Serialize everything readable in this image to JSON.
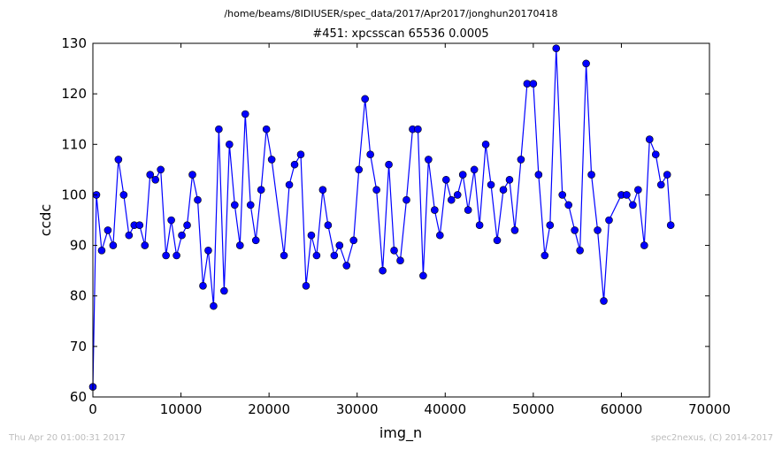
{
  "header": {
    "file_path": "/home/beams/8IDIUSER/spec_data/2017/Apr2017/jonghun20170418"
  },
  "footer": {
    "timestamp": "Thu Apr 20 01:00:31 2017",
    "credit": "spec2nexus, (C) 2014-2017"
  },
  "chart_data": {
    "type": "line",
    "title": "#451: xpcsscan 65536 0.0005",
    "xlabel": "img_n",
    "ylabel": "ccdc",
    "xlim": [
      0,
      70000
    ],
    "ylim": [
      60,
      130
    ],
    "xticks": [
      "0",
      "10000",
      "20000",
      "30000",
      "40000",
      "50000",
      "60000",
      "70000"
    ],
    "yticks": [
      "60",
      "70",
      "80",
      "90",
      "100",
      "110",
      "120",
      "130"
    ],
    "grid": false,
    "color": "#0000ff",
    "marker": "circle",
    "x": [
      0,
      400,
      1000,
      1700,
      2300,
      2900,
      3500,
      4100,
      4700,
      5300,
      5900,
      6500,
      7100,
      7700,
      8300,
      8900,
      9500,
      10100,
      10700,
      11300,
      11900,
      12500,
      13100,
      13700,
      14300,
      14900,
      15500,
      16100,
      16700,
      17300,
      17900,
      18500,
      19100,
      19700,
      20300,
      21700,
      22300,
      22900,
      23600,
      24200,
      24800,
      25400,
      26100,
      26700,
      27400,
      28000,
      28800,
      29600,
      30200,
      30900,
      31500,
      32200,
      32900,
      33600,
      34200,
      34900,
      35600,
      36300,
      36900,
      37500,
      38100,
      38800,
      39400,
      40100,
      40700,
      41400,
      42000,
      42600,
      43300,
      43900,
      44600,
      45200,
      45900,
      46600,
      47300,
      47900,
      48600,
      49300,
      50000,
      50600,
      51300,
      51900,
      52600,
      53300,
      54000,
      54700,
      55300,
      56000,
      56600,
      57300,
      58000,
      58600,
      60000,
      60600,
      61300,
      61900,
      62600,
      63200,
      63900,
      64500,
      65200,
      65600
    ],
    "y": [
      62,
      100,
      89,
      93,
      90,
      107,
      100,
      92,
      94,
      94,
      90,
      104,
      103,
      105,
      88,
      95,
      88,
      92,
      94,
      104,
      99,
      82,
      89,
      78,
      113,
      81,
      110,
      98,
      90,
      116,
      98,
      91,
      101,
      113,
      107,
      88,
      102,
      106,
      108,
      82,
      92,
      88,
      101,
      94,
      88,
      90,
      86,
      91,
      105,
      119,
      108,
      101,
      85,
      106,
      89,
      87,
      99,
      113,
      113,
      84,
      107,
      97,
      92,
      103,
      99,
      100,
      104,
      97,
      105,
      94,
      110,
      102,
      91,
      101,
      103,
      93,
      107,
      122,
      122,
      104,
      88,
      94,
      129,
      100,
      98,
      93,
      89,
      126,
      104,
      93,
      79,
      95,
      100,
      100,
      98,
      101,
      90,
      111,
      108,
      102,
      104,
      94
    ]
  }
}
